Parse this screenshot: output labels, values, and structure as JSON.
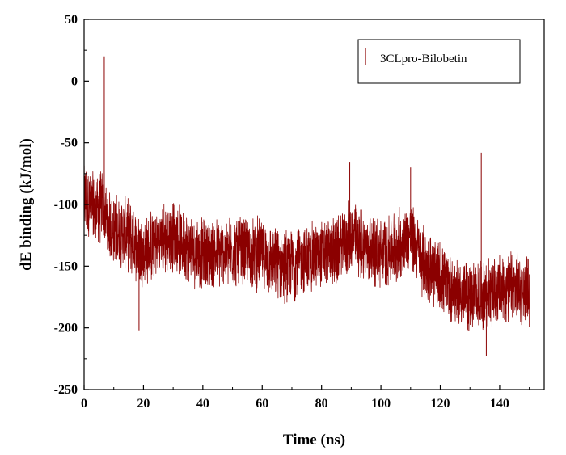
{
  "chart_data": {
    "type": "line",
    "title": "",
    "xlabel": "Time (ns)",
    "ylabel": "dE binding (kJ/mol)",
    "xlim": [
      0,
      155
    ],
    "ylim": [
      -250,
      50
    ],
    "xticks": [
      0,
      20,
      40,
      60,
      80,
      100,
      120,
      140
    ],
    "yticks": [
      50,
      0,
      -50,
      -100,
      -150,
      -200,
      -250
    ],
    "grid": false,
    "legend_position": "top-right",
    "series": [
      {
        "name": "3CLpro-Bilobetin",
        "color": "#8b0000",
        "x": [
          0,
          2,
          4,
          6,
          8,
          10,
          15,
          20,
          25,
          30,
          35,
          40,
          45,
          50,
          55,
          60,
          65,
          70,
          75,
          80,
          85,
          90,
          95,
          100,
          105,
          110,
          115,
          120,
          125,
          130,
          135,
          140,
          145,
          150
        ],
        "y": [
          -95,
          -100,
          -105,
          -100,
          -115,
          -120,
          -125,
          -140,
          -130,
          -125,
          -135,
          -140,
          -140,
          -138,
          -140,
          -140,
          -150,
          -148,
          -145,
          -140,
          -140,
          -125,
          -135,
          -140,
          -135,
          -125,
          -150,
          -160,
          -170,
          -175,
          -172,
          -170,
          -168,
          -170
        ]
      }
    ],
    "spikes": [
      {
        "x": 6.8,
        "y": 20
      },
      {
        "x": 18.5,
        "y": -202
      },
      {
        "x": 133.8,
        "y": -58
      },
      {
        "x": 135.5,
        "y": -223
      },
      {
        "x": 89.5,
        "y": -66
      },
      {
        "x": 110,
        "y": -70
      }
    ]
  }
}
